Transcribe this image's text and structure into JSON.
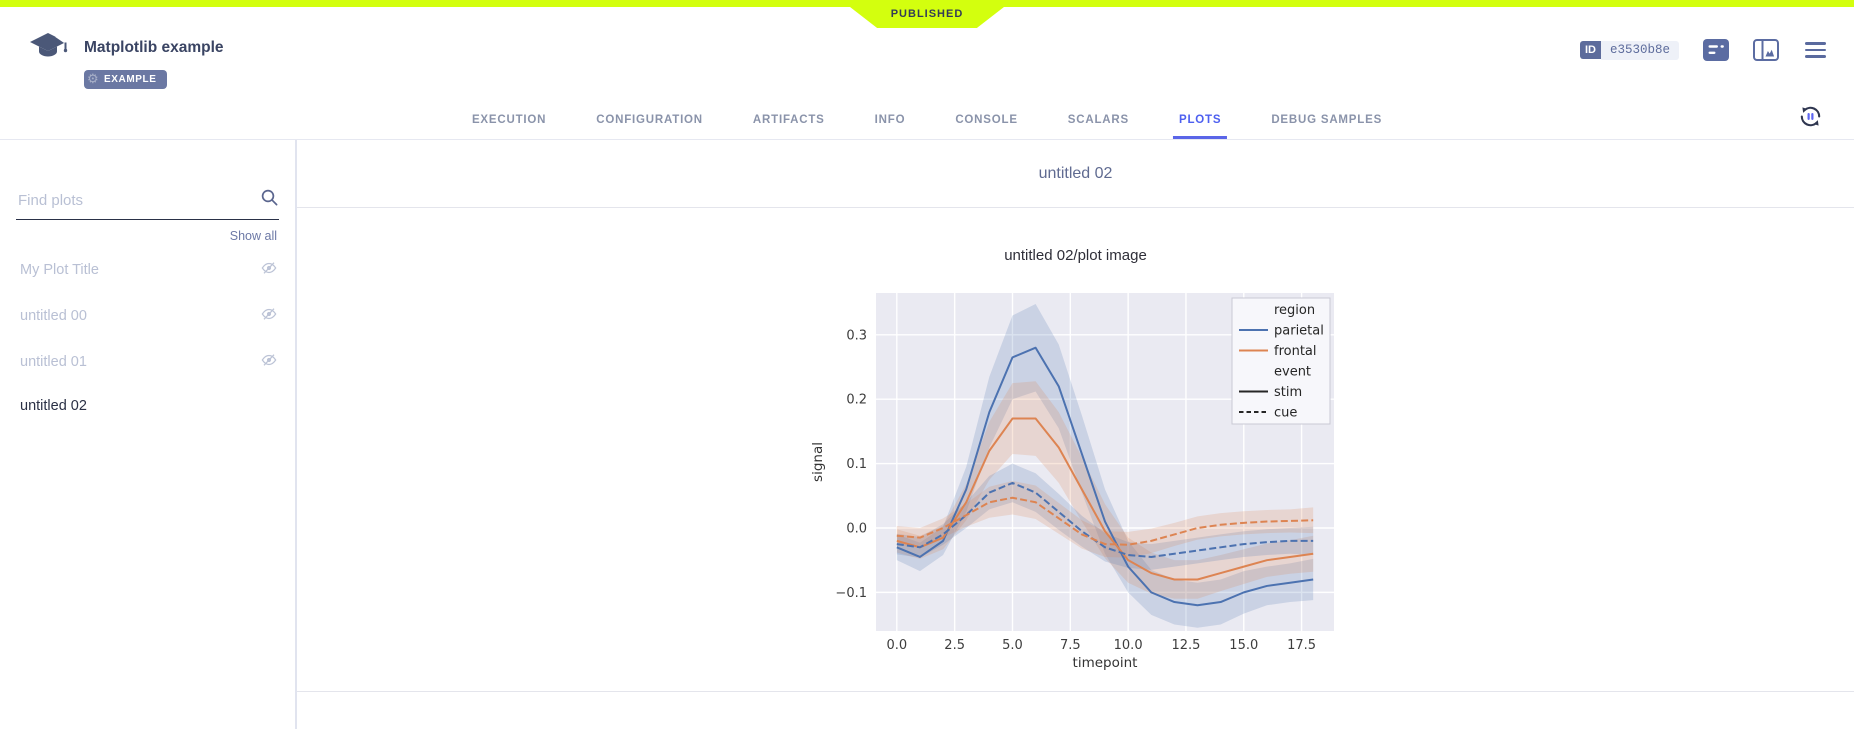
{
  "accent_color": "#d3ff0e",
  "top": {
    "published": "PUBLISHED"
  },
  "header": {
    "title": "Matplotlib example",
    "tag": "EXAMPLE",
    "id_label": "ID",
    "id_value": "e3530b8e"
  },
  "tabs": {
    "items": [
      "EXECUTION",
      "CONFIGURATION",
      "ARTIFACTS",
      "INFO",
      "CONSOLE",
      "SCALARS",
      "PLOTS",
      "DEBUG SAMPLES"
    ],
    "active": "PLOTS"
  },
  "sidebar": {
    "search_placeholder": "Find plots",
    "show_all": "Show all",
    "items": [
      {
        "label": "My Plot Title",
        "hidden": true
      },
      {
        "label": "untitled 00",
        "hidden": true
      },
      {
        "label": "untitled 01",
        "hidden": true
      },
      {
        "label": "untitled 02",
        "hidden": false
      }
    ]
  },
  "main": {
    "group_title": "untitled 02"
  },
  "chart_data": {
    "type": "line",
    "title": "untitled 02/plot image",
    "xlabel": "timepoint",
    "ylabel": "signal",
    "xticks": [
      0,
      2.5,
      5,
      7.5,
      10,
      12.5,
      15,
      17.5
    ],
    "yticks": [
      -0.1,
      0,
      0.1,
      0.2,
      0.3
    ],
    "xlim": [
      -0.9,
      18.9
    ],
    "ylim": [
      -0.16,
      0.365
    ],
    "grid": true,
    "bg": "#eaeaf2",
    "x": [
      0,
      1,
      2,
      3,
      4,
      5,
      6,
      7,
      8,
      9,
      10,
      11,
      12,
      13,
      14,
      15,
      16,
      17,
      18
    ],
    "series": [
      {
        "name": "parietal",
        "event": "stim",
        "color": "#4c72b0",
        "dash": "solid",
        "values": [
          -0.03,
          -0.045,
          -0.02,
          0.06,
          0.18,
          0.265,
          0.28,
          0.22,
          0.115,
          0.01,
          -0.06,
          -0.1,
          -0.115,
          -0.12,
          -0.115,
          -0.1,
          -0.09,
          -0.085,
          -0.08
        ],
        "band": [
          0.02,
          0.022,
          0.022,
          0.035,
          0.055,
          0.065,
          0.068,
          0.065,
          0.06,
          0.05,
          0.04,
          0.035,
          0.035,
          0.035,
          0.035,
          0.033,
          0.03,
          0.03,
          0.032
        ]
      },
      {
        "name": "frontal",
        "event": "stim",
        "color": "#dd8452",
        "dash": "solid",
        "values": [
          -0.02,
          -0.03,
          -0.015,
          0.04,
          0.12,
          0.17,
          0.17,
          0.125,
          0.06,
          -0.005,
          -0.05,
          -0.07,
          -0.08,
          -0.08,
          -0.07,
          -0.06,
          -0.05,
          -0.045,
          -0.04
        ],
        "band": [
          0.018,
          0.018,
          0.018,
          0.028,
          0.045,
          0.055,
          0.058,
          0.055,
          0.05,
          0.042,
          0.035,
          0.032,
          0.03,
          0.03,
          0.028,
          0.027,
          0.026,
          0.026,
          0.028
        ]
      },
      {
        "name": "parietal",
        "event": "cue",
        "color": "#4c72b0",
        "dash": "dashed",
        "values": [
          -0.025,
          -0.03,
          -0.01,
          0.02,
          0.055,
          0.07,
          0.055,
          0.025,
          -0.005,
          -0.03,
          -0.042,
          -0.045,
          -0.04,
          -0.035,
          -0.03,
          -0.025,
          -0.022,
          -0.02,
          -0.02
        ],
        "band": [
          0.016,
          0.016,
          0.016,
          0.02,
          0.026,
          0.03,
          0.03,
          0.028,
          0.024,
          0.022,
          0.02,
          0.02,
          0.02,
          0.02,
          0.02,
          0.02,
          0.02,
          0.02,
          0.022
        ]
      },
      {
        "name": "frontal",
        "event": "cue",
        "color": "#dd8452",
        "dash": "dashed",
        "values": [
          -0.012,
          -0.015,
          0.0,
          0.02,
          0.04,
          0.047,
          0.04,
          0.015,
          -0.01,
          -0.025,
          -0.026,
          -0.02,
          -0.01,
          0.0,
          0.005,
          0.008,
          0.01,
          0.011,
          0.012
        ],
        "band": [
          0.015,
          0.015,
          0.015,
          0.018,
          0.024,
          0.026,
          0.026,
          0.024,
          0.022,
          0.02,
          0.02,
          0.019,
          0.018,
          0.018,
          0.018,
          0.018,
          0.018,
          0.018,
          0.02
        ]
      }
    ],
    "legend": {
      "position": "upper-right",
      "entries": [
        {
          "label": "region",
          "type": "header"
        },
        {
          "label": "parietal",
          "type": "line",
          "color": "#4c72b0",
          "dash": "solid"
        },
        {
          "label": "frontal",
          "type": "line",
          "color": "#dd8452",
          "dash": "solid"
        },
        {
          "label": "event",
          "type": "header"
        },
        {
          "label": "stim",
          "type": "line",
          "color": "#262626",
          "dash": "solid"
        },
        {
          "label": "cue",
          "type": "line",
          "color": "#262626",
          "dash": "dashed"
        }
      ]
    }
  }
}
